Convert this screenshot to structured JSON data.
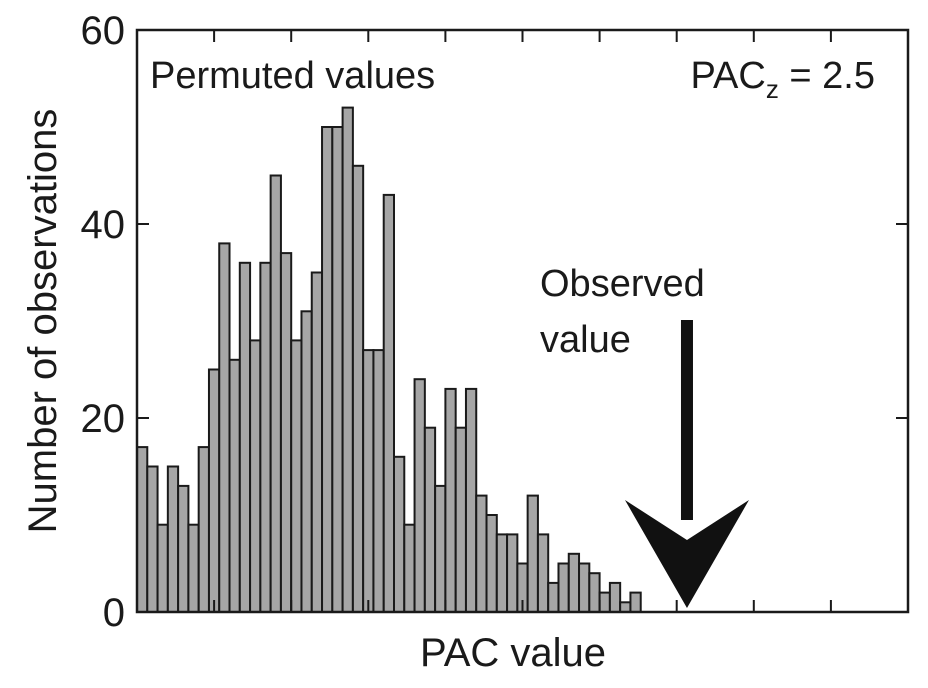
{
  "chart_data": {
    "type": "bar",
    "title": "",
    "xlabel": "PAC value",
    "ylabel": "Number of observations",
    "ylim": [
      0,
      60
    ],
    "yticks": [
      "0",
      "20",
      "40",
      "60"
    ],
    "xticks": [],
    "grid": false,
    "bins": 75,
    "values": [
      17,
      15,
      9,
      15,
      13,
      9,
      17,
      25,
      38,
      26,
      36,
      28,
      36,
      45,
      37,
      28,
      31,
      35,
      50,
      50,
      52,
      46,
      27,
      27,
      43,
      16,
      9,
      24,
      19,
      13,
      23,
      19,
      23,
      12,
      10,
      8,
      8,
      5,
      12,
      8,
      3,
      5,
      6,
      5,
      4,
      2,
      3,
      1,
      2,
      0,
      0,
      0,
      0,
      0,
      0,
      0,
      0,
      0,
      0,
      0,
      0,
      0,
      0,
      0,
      0,
      0,
      0,
      0,
      0,
      0,
      0,
      0,
      0,
      0,
      0
    ],
    "colors": {
      "bar": "#a6a6a6",
      "edge": "#1a1a1a",
      "arrow": "#111111"
    },
    "annotations": {
      "permuted_label": "Permuted values",
      "pacz_main": "PAC",
      "pacz_sub": "z",
      "pacz_value": " = 2.5",
      "observed_line1": "Observed",
      "observed_line2": "value",
      "observed_bin": 53
    }
  }
}
